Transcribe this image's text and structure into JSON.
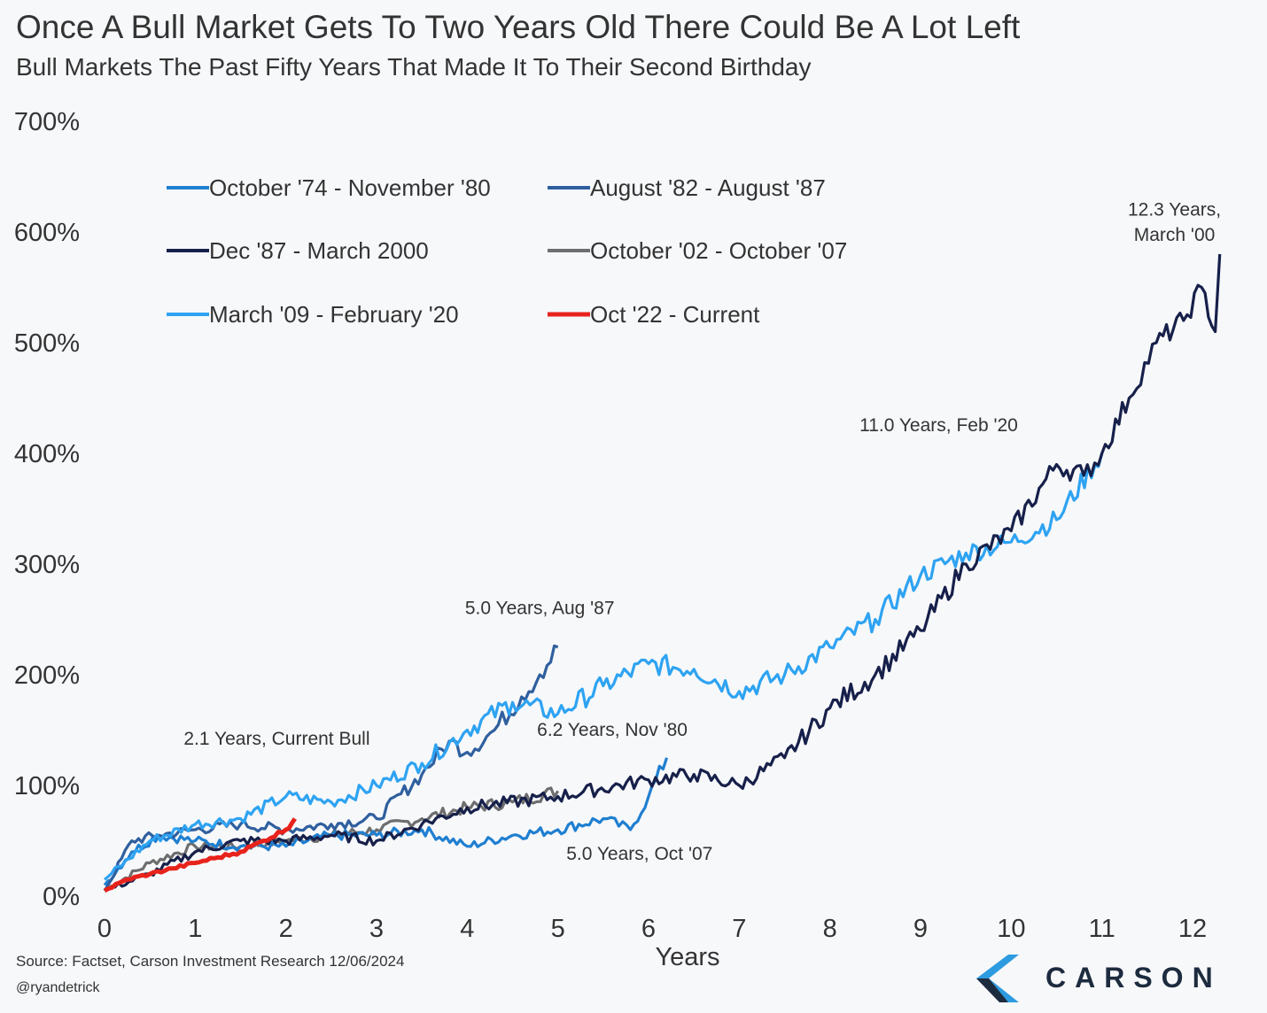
{
  "title": "Once A Bull Market Gets To Two Years Old There Could Be A Lot Left",
  "subtitle": "Bull Markets The Past Fifty Years That Made It To Their Second Birthday",
  "source": "Source: Factset, Carson Investment Research 12/06/2024",
  "handle": "@ryandetrick",
  "logo_text": "CARSON",
  "chart_data": {
    "type": "line",
    "xlabel": "Years",
    "ylabel": "",
    "xlim": [
      0,
      12.4
    ],
    "ylim": [
      0,
      700
    ],
    "xticks": [
      "0",
      "1",
      "2",
      "3",
      "4",
      "5",
      "6",
      "7",
      "8",
      "9",
      "10",
      "11",
      "12"
    ],
    "yticks": [
      "0%",
      "100%",
      "200%",
      "300%",
      "400%",
      "500%",
      "600%",
      "700%"
    ],
    "grid": false,
    "legend_position": "top-left",
    "series": [
      {
        "name": "October '74 - November '80",
        "color": "#1f7fd1",
        "points": [
          [
            0,
            10
          ],
          [
            0.3,
            40
          ],
          [
            0.6,
            55
          ],
          [
            1,
            50
          ],
          [
            1.5,
            45
          ],
          [
            2,
            45
          ],
          [
            2.5,
            55
          ],
          [
            3,
            55
          ],
          [
            3.5,
            60
          ],
          [
            4,
            45
          ],
          [
            4.5,
            55
          ],
          [
            5,
            60
          ],
          [
            5.5,
            70
          ],
          [
            5.8,
            60
          ],
          [
            6,
            90
          ],
          [
            6.2,
            125
          ]
        ]
      },
      {
        "name": "August '82 - August '87",
        "color": "#2f5f9e",
        "points": [
          [
            0,
            5
          ],
          [
            0.3,
            50
          ],
          [
            0.6,
            55
          ],
          [
            1,
            60
          ],
          [
            1.5,
            65
          ],
          [
            2,
            60
          ],
          [
            2.5,
            65
          ],
          [
            3,
            70
          ],
          [
            3.5,
            110
          ],
          [
            3.8,
            140
          ],
          [
            4,
            130
          ],
          [
            4.3,
            150
          ],
          [
            4.6,
            180
          ],
          [
            4.8,
            200
          ],
          [
            5,
            225
          ]
        ]
      },
      {
        "name": "Dec '87 - March 2000",
        "color": "#16204a",
        "points": [
          [
            0,
            5
          ],
          [
            0.5,
            20
          ],
          [
            1,
            40
          ],
          [
            1.5,
            50
          ],
          [
            2,
            50
          ],
          [
            2.5,
            55
          ],
          [
            3,
            50
          ],
          [
            3.5,
            65
          ],
          [
            4,
            80
          ],
          [
            5,
            90
          ],
          [
            6,
            105
          ],
          [
            6.5,
            110
          ],
          [
            7,
            100
          ],
          [
            7.5,
            125
          ],
          [
            8,
            170
          ],
          [
            8.5,
            200
          ],
          [
            9,
            240
          ],
          [
            9.5,
            300
          ],
          [
            10,
            330
          ],
          [
            10.5,
            390
          ],
          [
            10.8,
            380
          ],
          [
            11,
            400
          ],
          [
            11.3,
            450
          ],
          [
            11.6,
            500
          ],
          [
            11.9,
            520
          ],
          [
            12.1,
            550
          ],
          [
            12.25,
            510
          ],
          [
            12.3,
            580
          ]
        ]
      },
      {
        "name": "October '02 - October '07",
        "color": "#6e6e6e",
        "points": [
          [
            0,
            5
          ],
          [
            0.5,
            30
          ],
          [
            1,
            45
          ],
          [
            1.5,
            45
          ],
          [
            2,
            50
          ],
          [
            2.5,
            55
          ],
          [
            3,
            60
          ],
          [
            3.5,
            70
          ],
          [
            4,
            80
          ],
          [
            4.5,
            85
          ],
          [
            5,
            95
          ]
        ]
      },
      {
        "name": "March '09 - February '20",
        "color": "#2ea3f2",
        "points": [
          [
            0,
            15
          ],
          [
            0.5,
            50
          ],
          [
            1,
            65
          ],
          [
            1.5,
            70
          ],
          [
            2,
            90
          ],
          [
            2.5,
            85
          ],
          [
            3,
            100
          ],
          [
            3.5,
            120
          ],
          [
            4,
            150
          ],
          [
            4.5,
            175
          ],
          [
            5,
            165
          ],
          [
            5.5,
            190
          ],
          [
            6,
            210
          ],
          [
            6.5,
            205
          ],
          [
            7,
            185
          ],
          [
            7.5,
            200
          ],
          [
            8,
            225
          ],
          [
            8.5,
            250
          ],
          [
            9,
            290
          ],
          [
            9.5,
            310
          ],
          [
            10,
            320
          ],
          [
            10.5,
            340
          ],
          [
            11,
            400
          ]
        ]
      },
      {
        "name": "Oct '22 - Current",
        "color": "#e8231c",
        "points": [
          [
            0,
            5
          ],
          [
            0.25,
            15
          ],
          [
            0.5,
            20
          ],
          [
            0.75,
            25
          ],
          [
            1,
            30
          ],
          [
            1.25,
            35
          ],
          [
            1.5,
            40
          ],
          [
            1.75,
            50
          ],
          [
            2,
            60
          ],
          [
            2.1,
            70
          ]
        ]
      }
    ],
    "annotations": [
      {
        "text": "12.3 Years,",
        "x": 11.8,
        "y": 615
      },
      {
        "text": "March '00",
        "x": 11.8,
        "y": 592
      },
      {
        "text": "11.0 Years, Feb '20",
        "x": 9.2,
        "y": 420
      },
      {
        "text": "5.0 Years, Aug '87",
        "x": 4.8,
        "y": 255
      },
      {
        "text": "6.2 Years, Nov '80",
        "x": 5.6,
        "y": 145
      },
      {
        "text": "2.1 Years, Current Bull",
        "x": 1.9,
        "y": 137
      },
      {
        "text": "5.0 Years, Oct '07",
        "x": 5.9,
        "y": 33
      }
    ]
  }
}
